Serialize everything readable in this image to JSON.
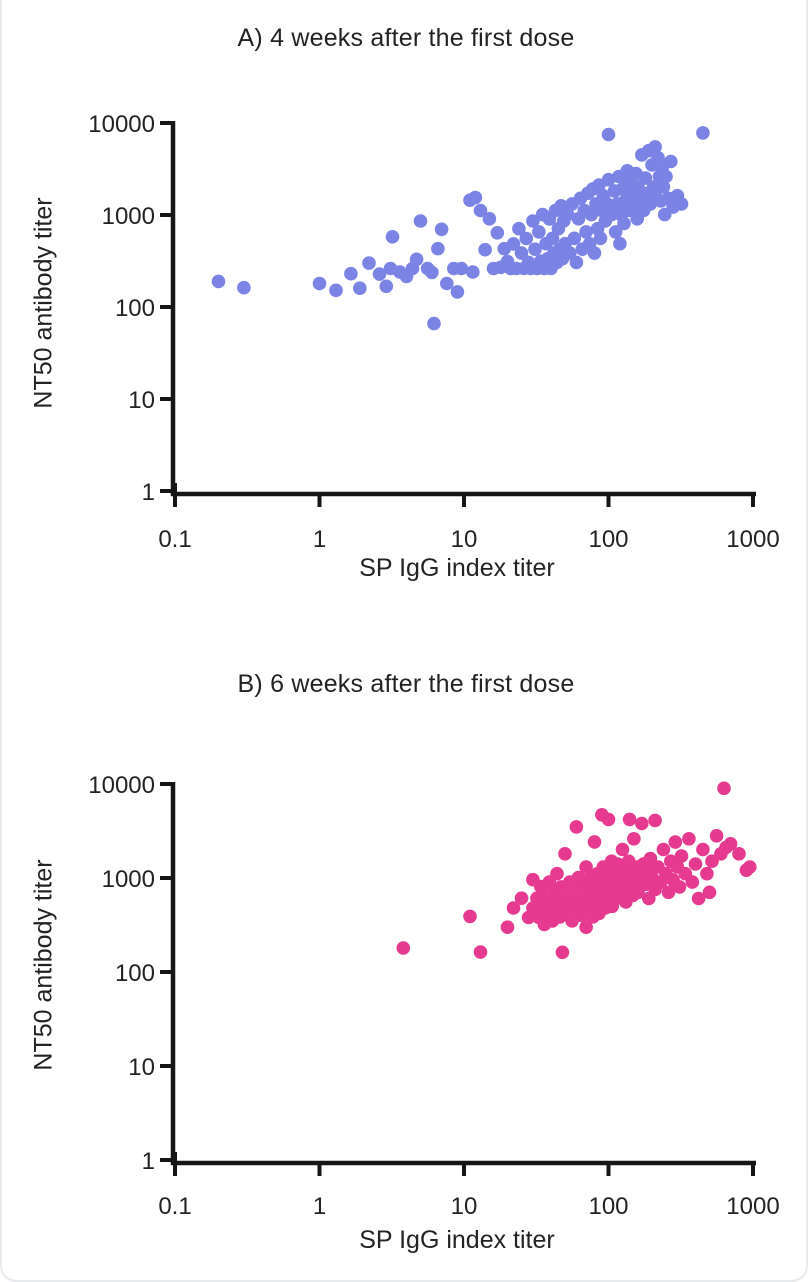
{
  "figure": {
    "background": "#ffffff",
    "border_color": "#e7e9ed",
    "axis_color": "#161616",
    "text_color": "#232323"
  },
  "chart_data": [
    {
      "type": "scatter",
      "panel": "A",
      "title": "A) 4 weeks after the first dose",
      "xlabel": "SP IgG index titer",
      "ylabel": "NT50 antibody titer",
      "xscale": "log",
      "yscale": "log",
      "xlim": [
        0.1,
        1000
      ],
      "ylim": [
        1,
        10000
      ],
      "x_tick_values": [
        0.1,
        1,
        10,
        100,
        1000
      ],
      "x_tick_labels": [
        "0.1",
        "1",
        "10",
        "100",
        "1000"
      ],
      "y_tick_values": [
        1,
        10,
        100,
        1000,
        10000
      ],
      "y_tick_labels": [
        "1",
        "10",
        "100",
        "1000",
        "10000"
      ],
      "dot_color": "#7b83e4",
      "grid": false,
      "legend": "none",
      "points": [
        [
          0.2,
          190
        ],
        [
          0.3,
          162
        ],
        [
          1.0,
          180
        ],
        [
          1.3,
          152
        ],
        [
          1.65,
          230
        ],
        [
          1.9,
          160
        ],
        [
          2.2,
          300
        ],
        [
          2.6,
          228
        ],
        [
          2.9,
          168
        ],
        [
          3.1,
          262
        ],
        [
          3.2,
          580
        ],
        [
          3.6,
          240
        ],
        [
          4.0,
          215
        ],
        [
          4.4,
          262
        ],
        [
          4.7,
          330
        ],
        [
          5.0,
          860
        ],
        [
          5.6,
          262
        ],
        [
          6.0,
          238
        ],
        [
          6.2,
          66
        ],
        [
          6.6,
          430
        ],
        [
          7.0,
          700
        ],
        [
          7.6,
          180
        ],
        [
          8.5,
          262
        ],
        [
          9.0,
          146
        ],
        [
          9.6,
          262
        ],
        [
          11,
          1450
        ],
        [
          11.5,
          240
        ],
        [
          12,
          1550
        ],
        [
          13,
          1120
        ],
        [
          14,
          420
        ],
        [
          15,
          910
        ],
        [
          16,
          262
        ],
        [
          17,
          640
        ],
        [
          18,
          270
        ],
        [
          19,
          430
        ],
        [
          20,
          312
        ],
        [
          21,
          262
        ],
        [
          22,
          485
        ],
        [
          23,
          262
        ],
        [
          24,
          710
        ],
        [
          25,
          385
        ],
        [
          26,
          262
        ],
        [
          27,
          555
        ],
        [
          28,
          305
        ],
        [
          29,
          262
        ],
        [
          30,
          860
        ],
        [
          31,
          425
        ],
        [
          32,
          262
        ],
        [
          33,
          655
        ],
        [
          34,
          315
        ],
        [
          35,
          1010
        ],
        [
          36,
          262
        ],
        [
          37,
          487
        ],
        [
          38,
          335
        ],
        [
          39,
          905
        ],
        [
          40,
          262
        ],
        [
          41,
          558
        ],
        [
          42,
          385
        ],
        [
          43,
          1120
        ],
        [
          44,
          305
        ],
        [
          45,
          710
        ],
        [
          46,
          425
        ],
        [
          47,
          1260
        ],
        [
          48,
          335
        ],
        [
          49,
          860
        ],
        [
          50,
          487
        ],
        [
          52,
          1010
        ],
        [
          54,
          385
        ],
        [
          56,
          1320
        ],
        [
          58,
          558
        ],
        [
          60,
          305
        ],
        [
          62,
          910
        ],
        [
          64,
          1520
        ],
        [
          66,
          425
        ],
        [
          68,
          1120
        ],
        [
          70,
          655
        ],
        [
          72,
          1720
        ],
        [
          74,
          487
        ],
        [
          76,
          1010
        ],
        [
          78,
          1920
        ],
        [
          80,
          385
        ],
        [
          82,
          1320
        ],
        [
          84,
          710
        ],
        [
          86,
          2120
        ],
        [
          88,
          558
        ],
        [
          90,
          1120
        ],
        [
          92,
          1620
        ],
        [
          95,
          860
        ],
        [
          98,
          1320
        ],
        [
          100,
          7500
        ],
        [
          100,
          2420
        ],
        [
          105,
          1010
        ],
        [
          110,
          1820
        ],
        [
          112,
          655
        ],
        [
          115,
          1320
        ],
        [
          118,
          2620
        ],
        [
          120,
          487
        ],
        [
          122,
          1010
        ],
        [
          125,
          1920
        ],
        [
          128,
          810
        ],
        [
          130,
          1420
        ],
        [
          135,
          3020
        ],
        [
          138,
          1120
        ],
        [
          140,
          2220
        ],
        [
          145,
          1620
        ],
        [
          150,
          1260
        ],
        [
          155,
          2820
        ],
        [
          158,
          910
        ],
        [
          160,
          2020
        ],
        [
          165,
          1520
        ],
        [
          170,
          4500
        ],
        [
          175,
          1120
        ],
        [
          180,
          2520
        ],
        [
          185,
          1720
        ],
        [
          190,
          5000
        ],
        [
          195,
          1320
        ],
        [
          200,
          3500
        ],
        [
          205,
          2020
        ],
        [
          210,
          5500
        ],
        [
          215,
          1520
        ],
        [
          220,
          4200
        ],
        [
          225,
          2620
        ],
        [
          230,
          1420
        ],
        [
          235,
          3220
        ],
        [
          240,
          2020
        ],
        [
          245,
          1010
        ],
        [
          250,
          2620
        ],
        [
          260,
          1520
        ],
        [
          270,
          3820
        ],
        [
          280,
          1220
        ],
        [
          300,
          1620
        ],
        [
          320,
          1320
        ],
        [
          450,
          7800
        ]
      ]
    },
    {
      "type": "scatter",
      "panel": "B",
      "title": "B) 6 weeks after the first dose",
      "xlabel": "SP IgG index titer",
      "ylabel": "NT50 antibody titer",
      "xscale": "log",
      "yscale": "log",
      "xlim": [
        0.1,
        1000
      ],
      "ylim": [
        1,
        10000
      ],
      "x_tick_values": [
        0.1,
        1,
        10,
        100,
        1000
      ],
      "x_tick_labels": [
        "0.1",
        "1",
        "10",
        "100",
        "1000"
      ],
      "y_tick_values": [
        1,
        10,
        100,
        1000,
        10000
      ],
      "y_tick_labels": [
        "1",
        "10",
        "100",
        "1000",
        "10000"
      ],
      "dot_color": "#e63a90",
      "grid": false,
      "legend": "none",
      "points": [
        [
          3.8,
          180
        ],
        [
          11,
          390
        ],
        [
          13,
          163
        ],
        [
          20,
          300
        ],
        [
          22,
          480
        ],
        [
          25,
          610
        ],
        [
          28,
          380
        ],
        [
          30,
          960
        ],
        [
          30,
          480
        ],
        [
          32,
          610
        ],
        [
          33,
          380
        ],
        [
          34,
          810
        ],
        [
          35,
          500
        ],
        [
          36,
          320
        ],
        [
          37,
          655
        ],
        [
          38,
          420
        ],
        [
          39,
          905
        ],
        [
          40,
          555
        ],
        [
          41,
          350
        ],
        [
          42,
          705
        ],
        [
          43,
          460
        ],
        [
          44,
          1110
        ],
        [
          45,
          605
        ],
        [
          46,
          385
        ],
        [
          47,
          805
        ],
        [
          48,
          162
        ],
        [
          48,
          505
        ],
        [
          50,
          1810
        ],
        [
          51,
          655
        ],
        [
          52,
          420
        ],
        [
          54,
          905
        ],
        [
          55,
          560
        ],
        [
          56,
          350
        ],
        [
          58,
          705
        ],
        [
          60,
          3500
        ],
        [
          60,
          480
        ],
        [
          62,
          1010
        ],
        [
          64,
          605
        ],
        [
          65,
          400
        ],
        [
          66,
          855
        ],
        [
          68,
          520
        ],
        [
          70,
          1310
        ],
        [
          70,
          300
        ],
        [
          72,
          705
        ],
        [
          74,
          455
        ],
        [
          75,
          1010
        ],
        [
          76,
          605
        ],
        [
          78,
          385
        ],
        [
          80,
          2420
        ],
        [
          80,
          805
        ],
        [
          82,
          520
        ],
        [
          84,
          1110
        ],
        [
          85,
          655
        ],
        [
          86,
          420
        ],
        [
          88,
          905
        ],
        [
          90,
          4700
        ],
        [
          90,
          560
        ],
        [
          92,
          1310
        ],
        [
          94,
          755
        ],
        [
          95,
          480
        ],
        [
          96,
          1010
        ],
        [
          98,
          620
        ],
        [
          100,
          4200
        ],
        [
          100,
          855
        ],
        [
          102,
          1110
        ],
        [
          104,
          705
        ],
        [
          105,
          1510
        ],
        [
          106,
          500
        ],
        [
          108,
          955
        ],
        [
          110,
          1210
        ],
        [
          112,
          805
        ],
        [
          114,
          605
        ],
        [
          115,
          1010
        ],
        [
          116,
          1410
        ],
        [
          118,
          755
        ],
        [
          120,
          1110
        ],
        [
          122,
          905
        ],
        [
          125,
          2010
        ],
        [
          128,
          705
        ],
        [
          130,
          1210
        ],
        [
          132,
          555
        ],
        [
          135,
          955
        ],
        [
          138,
          1510
        ],
        [
          140,
          4200
        ],
        [
          140,
          805
        ],
        [
          145,
          1110
        ],
        [
          148,
          655
        ],
        [
          150,
          2610
        ],
        [
          155,
          905
        ],
        [
          158,
          1310
        ],
        [
          160,
          705
        ],
        [
          165,
          1010
        ],
        [
          170,
          3800
        ],
        [
          175,
          1410
        ],
        [
          180,
          855
        ],
        [
          185,
          1210
        ],
        [
          190,
          605
        ],
        [
          195,
          1610
        ],
        [
          200,
          1010
        ],
        [
          210,
          4100
        ],
        [
          210,
          755
        ],
        [
          220,
          1310
        ],
        [
          230,
          905
        ],
        [
          240,
          2010
        ],
        [
          250,
          1110
        ],
        [
          260,
          705
        ],
        [
          270,
          1510
        ],
        [
          280,
          955
        ],
        [
          290,
          2410
        ],
        [
          300,
          1310
        ],
        [
          310,
          805
        ],
        [
          320,
          1710
        ],
        [
          340,
          1110
        ],
        [
          360,
          2610
        ],
        [
          380,
          905
        ],
        [
          400,
          1410
        ],
        [
          420,
          605
        ],
        [
          450,
          2010
        ],
        [
          480,
          1110
        ],
        [
          500,
          705
        ],
        [
          520,
          1510
        ],
        [
          560,
          2810
        ],
        [
          600,
          1810
        ],
        [
          630,
          9000
        ],
        [
          650,
          2110
        ],
        [
          700,
          2310
        ],
        [
          800,
          1810
        ],
        [
          900,
          1210
        ],
        [
          950,
          1310
        ]
      ]
    }
  ]
}
